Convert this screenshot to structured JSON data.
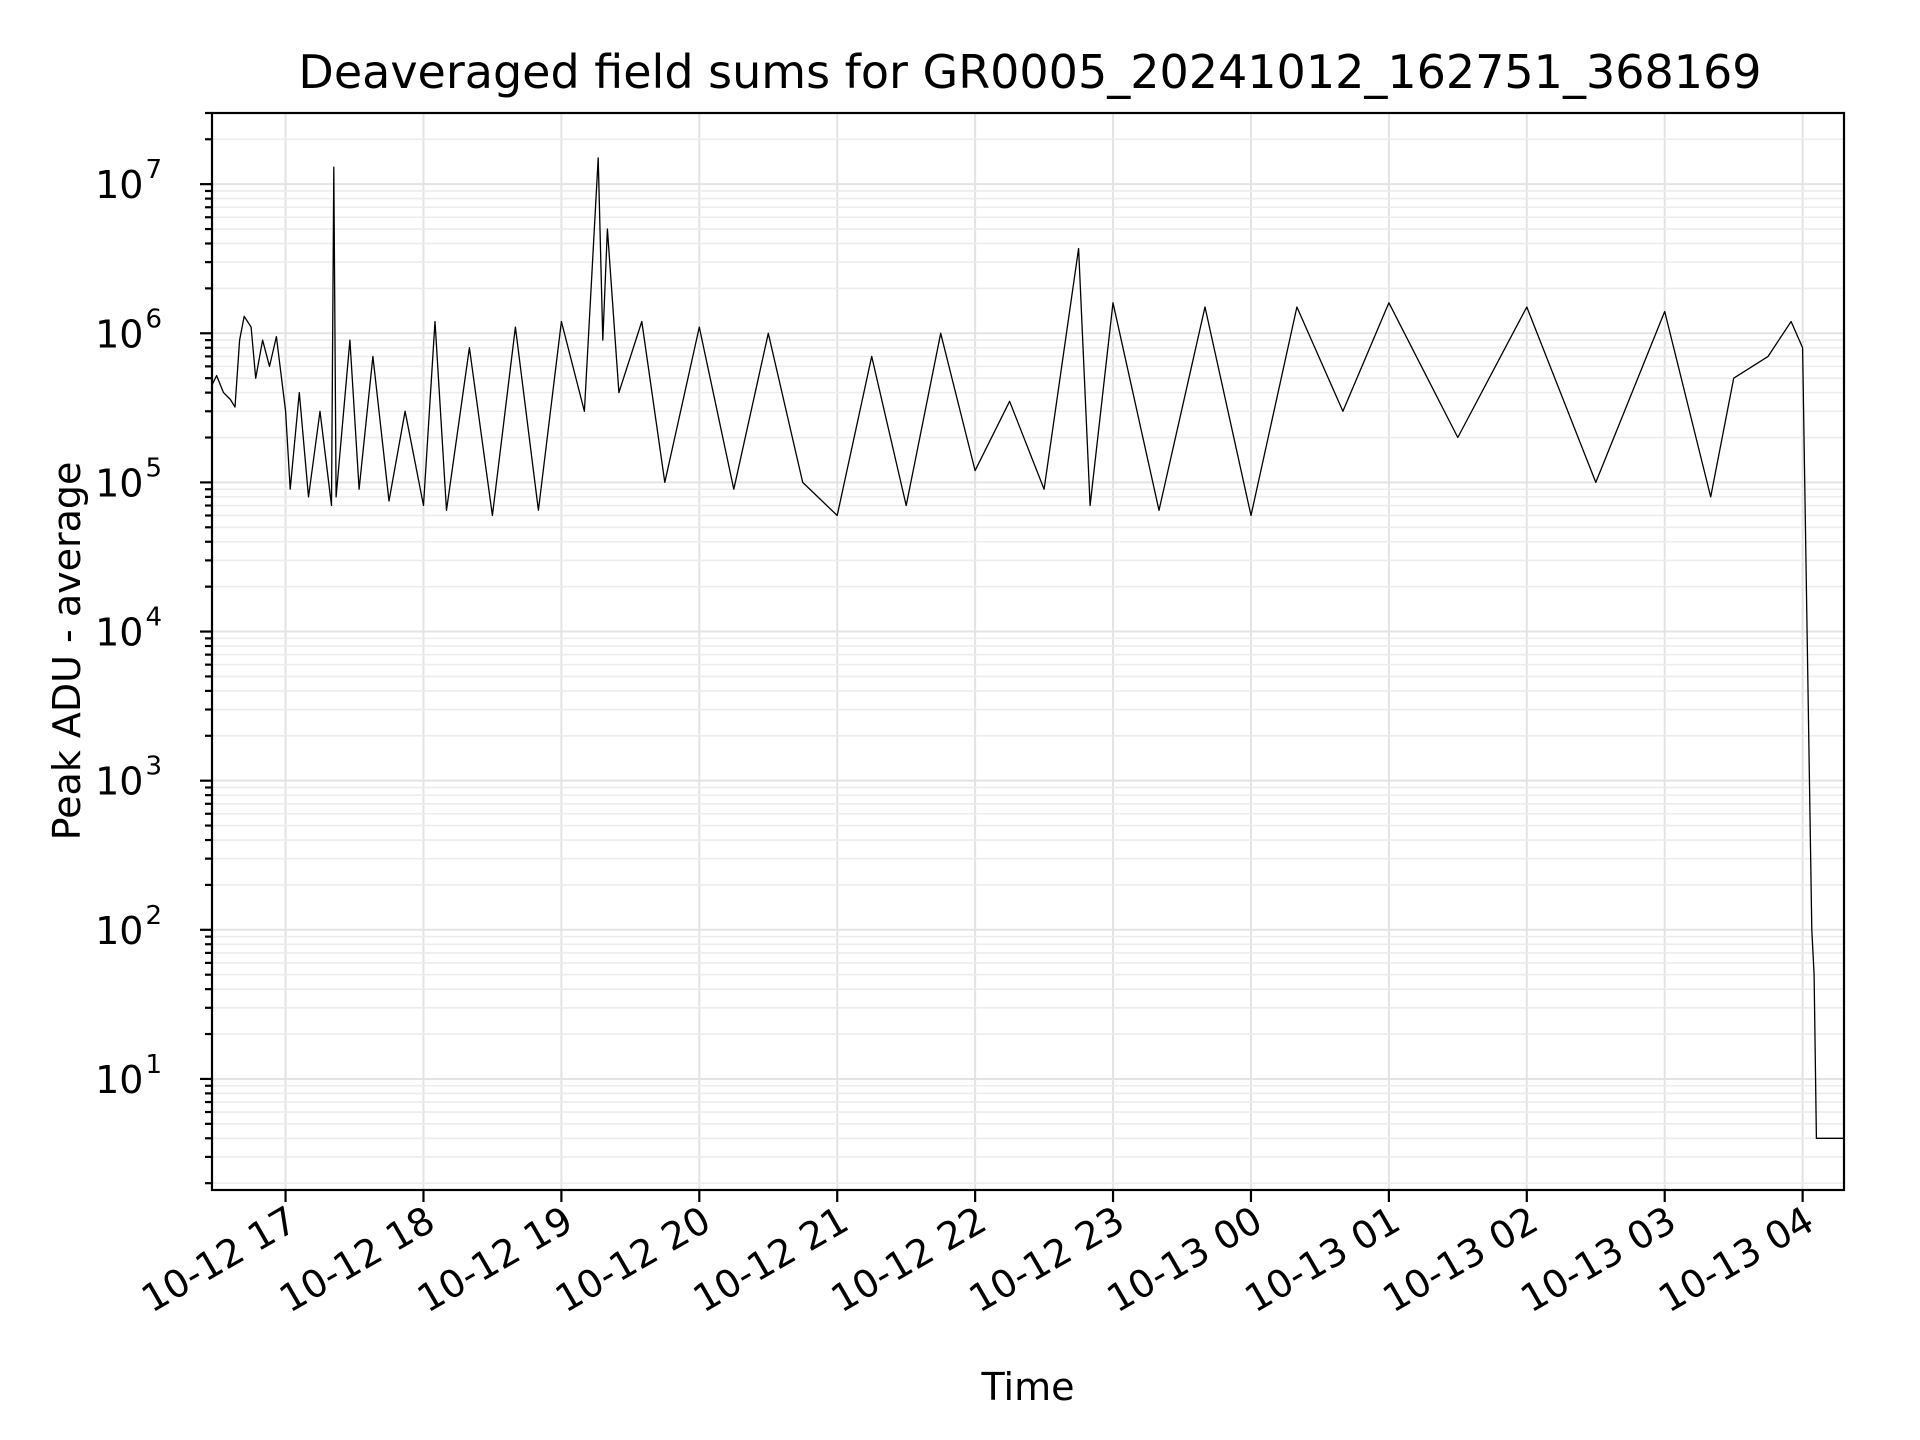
{
  "chart_data": {
    "type": "line",
    "title": "Deaveraged field sums for GR0005_20241012_162751_368169",
    "xlabel": "Time",
    "ylabel": "Peak ADU - average",
    "yscale": "log",
    "ylim": [
      1.8,
      30000000
    ],
    "xlim": [
      "2024-10-12 16:28",
      "2024-10-13 04:18"
    ],
    "grid": true,
    "x_tick_labels": [
      "10-12 17",
      "10-12 18",
      "10-12 19",
      "10-12 20",
      "10-12 21",
      "10-12 22",
      "10-12 23",
      "10-13 00",
      "10-13 01",
      "10-13 02",
      "10-13 03",
      "10-13 04"
    ],
    "y_tick_labels": [
      {
        "base": "10",
        "exp": "1",
        "value": 10
      },
      {
        "base": "10",
        "exp": "2",
        "value": 100
      },
      {
        "base": "10",
        "exp": "3",
        "value": 1000
      },
      {
        "base": "10",
        "exp": "4",
        "value": 10000
      },
      {
        "base": "10",
        "exp": "5",
        "value": 100000
      },
      {
        "base": "10",
        "exp": "6",
        "value": 1000000
      },
      {
        "base": "10",
        "exp": "7",
        "value": 10000000
      }
    ],
    "series": [
      {
        "color": "#000000",
        "points": [
          [
            "2024-10-12 16:28",
            450000
          ],
          [
            "2024-10-12 16:30",
            520000
          ],
          [
            "2024-10-12 16:33",
            400000
          ],
          [
            "2024-10-12 16:36",
            360000
          ],
          [
            "2024-10-12 16:38",
            320000
          ],
          [
            "2024-10-12 16:40",
            900000
          ],
          [
            "2024-10-12 16:42",
            1300000
          ],
          [
            "2024-10-12 16:45",
            1100000
          ],
          [
            "2024-10-12 16:47",
            500000
          ],
          [
            "2024-10-12 16:50",
            900000
          ],
          [
            "2024-10-12 16:53",
            600000
          ],
          [
            "2024-10-12 16:56",
            950000
          ],
          [
            "2024-10-12 17:00",
            300000
          ],
          [
            "2024-10-12 17:02",
            90000
          ],
          [
            "2024-10-12 17:06",
            400000
          ],
          [
            "2024-10-12 17:10",
            80000
          ],
          [
            "2024-10-12 17:15",
            300000
          ],
          [
            "2024-10-12 17:20",
            70000
          ],
          [
            "2024-10-12 17:21",
            13000000
          ],
          [
            "2024-10-12 17:22",
            80000
          ],
          [
            "2024-10-12 17:28",
            900000
          ],
          [
            "2024-10-12 17:32",
            90000
          ],
          [
            "2024-10-12 17:38",
            700000
          ],
          [
            "2024-10-12 17:45",
            75000
          ],
          [
            "2024-10-12 17:52",
            300000
          ],
          [
            "2024-10-12 18:00",
            70000
          ],
          [
            "2024-10-12 18:05",
            1200000
          ],
          [
            "2024-10-12 18:10",
            65000
          ],
          [
            "2024-10-12 18:20",
            800000
          ],
          [
            "2024-10-12 18:30",
            60000
          ],
          [
            "2024-10-12 18:40",
            1100000
          ],
          [
            "2024-10-12 18:50",
            65000
          ],
          [
            "2024-10-12 19:00",
            1200000
          ],
          [
            "2024-10-12 19:10",
            300000
          ],
          [
            "2024-10-12 19:16",
            15000000
          ],
          [
            "2024-10-12 19:18",
            900000
          ],
          [
            "2024-10-12 19:20",
            5000000
          ],
          [
            "2024-10-12 19:25",
            400000
          ],
          [
            "2024-10-12 19:35",
            1200000
          ],
          [
            "2024-10-12 19:45",
            100000
          ],
          [
            "2024-10-12 20:00",
            1100000
          ],
          [
            "2024-10-12 20:15",
            90000
          ],
          [
            "2024-10-12 20:30",
            1000000
          ],
          [
            "2024-10-12 20:45",
            100000
          ],
          [
            "2024-10-12 21:00",
            60000
          ],
          [
            "2024-10-12 21:15",
            700000
          ],
          [
            "2024-10-12 21:30",
            70000
          ],
          [
            "2024-10-12 21:45",
            1000000
          ],
          [
            "2024-10-12 22:00",
            120000
          ],
          [
            "2024-10-12 22:15",
            350000
          ],
          [
            "2024-10-12 22:30",
            90000
          ],
          [
            "2024-10-12 22:45",
            3700000
          ],
          [
            "2024-10-12 22:50",
            70000
          ],
          [
            "2024-10-12 23:00",
            1600000
          ],
          [
            "2024-10-12 23:20",
            65000
          ],
          [
            "2024-10-12 23:40",
            1500000
          ],
          [
            "2024-10-13 00:00",
            60000
          ],
          [
            "2024-10-13 00:20",
            1500000
          ],
          [
            "2024-10-13 00:40",
            300000
          ],
          [
            "2024-10-13 01:00",
            1600000
          ],
          [
            "2024-10-13 01:30",
            200000
          ],
          [
            "2024-10-13 02:00",
            1500000
          ],
          [
            "2024-10-13 02:30",
            100000
          ],
          [
            "2024-10-13 03:00",
            1400000
          ],
          [
            "2024-10-13 03:20",
            80000
          ],
          [
            "2024-10-13 03:30",
            500000
          ],
          [
            "2024-10-13 03:45",
            700000
          ],
          [
            "2024-10-13 03:55",
            1200000
          ],
          [
            "2024-10-13 04:00",
            800000
          ],
          [
            "2024-10-13 04:04",
            100
          ],
          [
            "2024-10-13 04:05",
            50
          ],
          [
            "2024-10-13 04:06",
            4
          ],
          [
            "2024-10-13 04:18",
            4
          ]
        ]
      }
    ]
  }
}
